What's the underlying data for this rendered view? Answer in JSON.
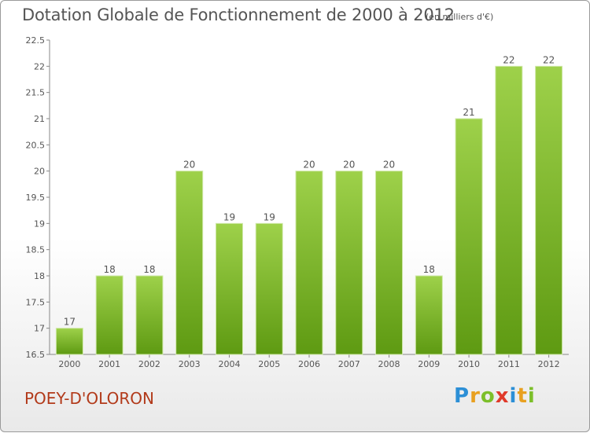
{
  "header": {
    "title": "Dotation Globale de Fonctionnement de 2000 à 2012",
    "unit": "(en milliers d'€)"
  },
  "footer": {
    "commune": "POEY-D'OLORON",
    "logo_text": "Proxiti"
  },
  "colors": {
    "bar_top": "#9ed14a",
    "bar_bottom": "#5e9a12",
    "commune_text": "#b23a1a"
  },
  "chart_data": {
    "type": "bar",
    "title": "Dotation Globale de Fonctionnement de 2000 à 2012",
    "subtitle": "(en milliers d'€)",
    "categories": [
      "2000",
      "2001",
      "2002",
      "2003",
      "2004",
      "2005",
      "2006",
      "2007",
      "2008",
      "2009",
      "2010",
      "2011",
      "2012"
    ],
    "values": [
      17,
      18,
      18,
      20,
      19,
      19,
      20,
      20,
      20,
      18,
      21,
      22,
      22
    ],
    "ylim": [
      16.5,
      22.5
    ],
    "yticks": [
      "16.5",
      "17",
      "17.5",
      "18",
      "18.5",
      "19",
      "19.5",
      "20",
      "20.5",
      "21",
      "21.5",
      "22",
      "22.5"
    ],
    "grid": false,
    "legend": "none"
  }
}
